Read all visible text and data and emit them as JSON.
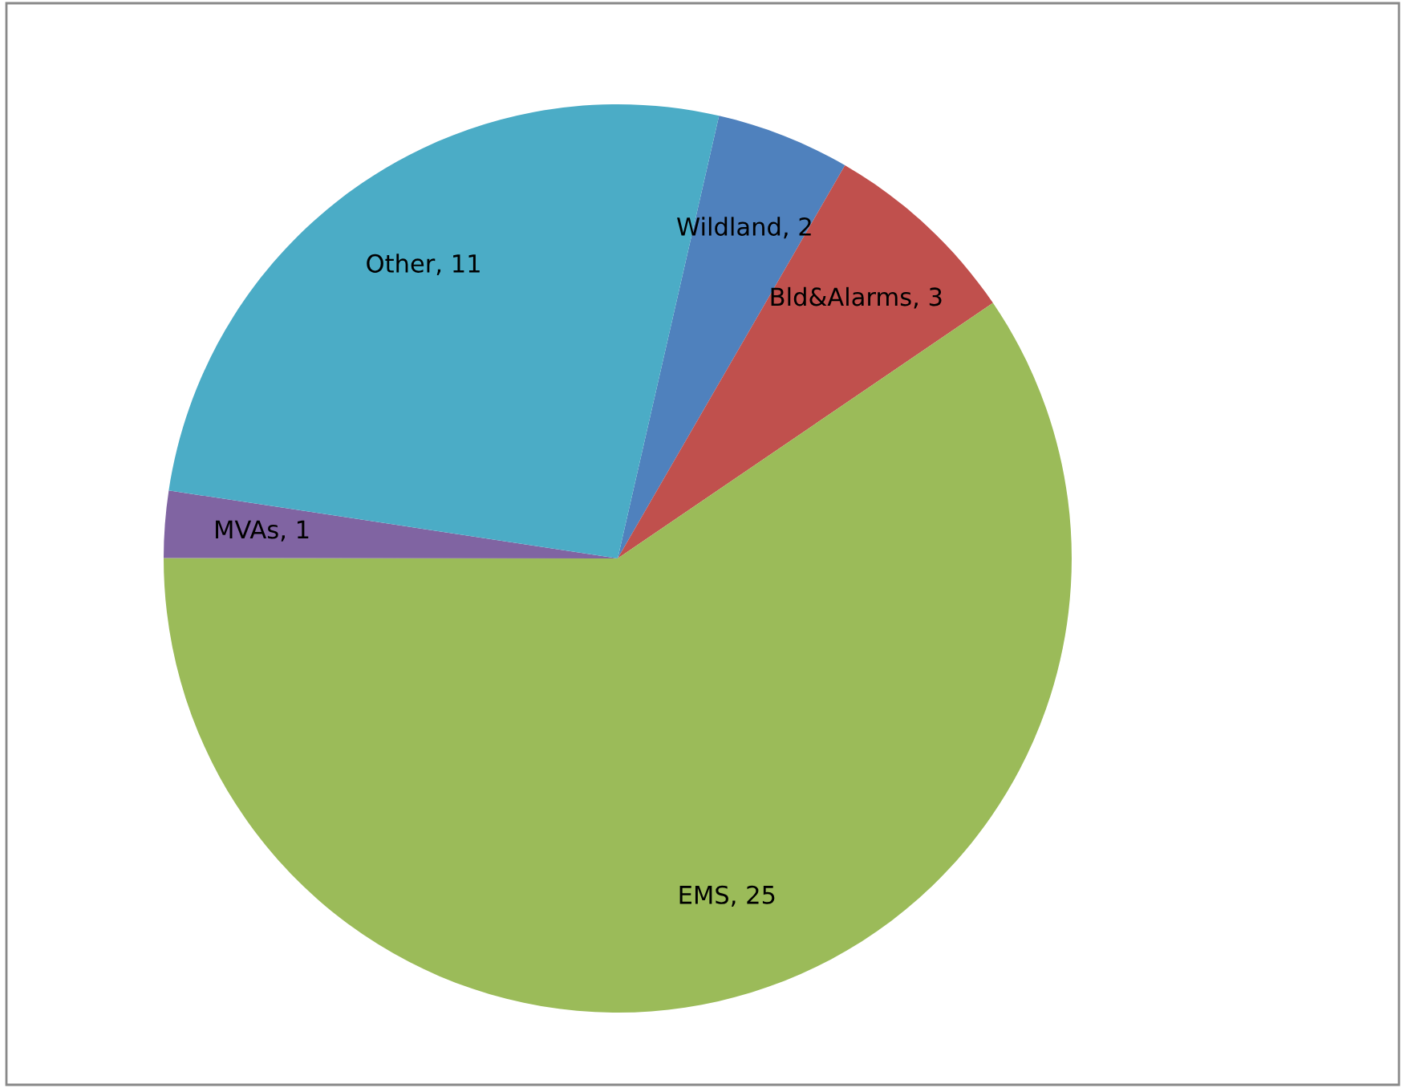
{
  "chart_data": {
    "type": "pie",
    "categories": [
      "Wildland",
      "Bld&Alarms",
      "EMS",
      "MVAs",
      "Other"
    ],
    "values": [
      2,
      3,
      25,
      1,
      11
    ],
    "colors": [
      "#4f81bd",
      "#c0504d",
      "#9bbb59",
      "#8064a2",
      "#4bacc6"
    ],
    "value_labels": [
      ", 2",
      ", 3",
      ", 25",
      ", 1",
      ", 11"
    ]
  }
}
